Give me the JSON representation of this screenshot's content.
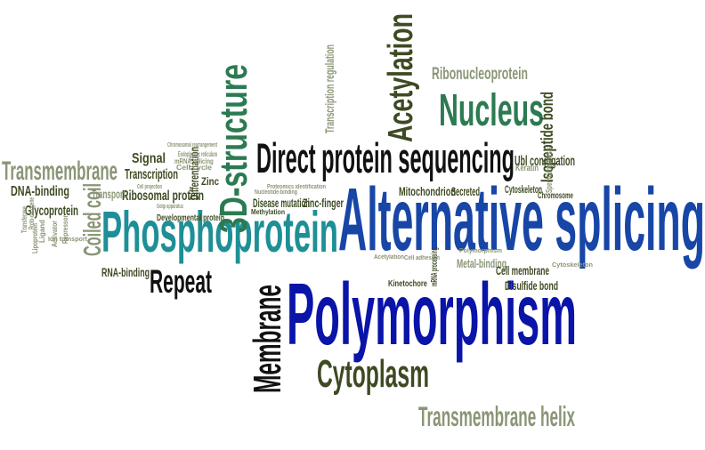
{
  "colors": {
    "blue": "#1746a6",
    "navy": "#0a14a8",
    "teal": "#1e8f96",
    "green": "#2c7a52",
    "olive": "#3d4a22",
    "sage": "#8a9576",
    "black": "#111111"
  },
  "words": [
    {
      "text": "Alternative splicing",
      "color": "blue"
    },
    {
      "text": "Polymorphism",
      "color": "navy"
    },
    {
      "text": "Phosphoprotein",
      "color": "teal"
    },
    {
      "text": "Nucleus",
      "color": "green"
    },
    {
      "text": "Acetylation",
      "color": "olive"
    },
    {
      "text": "3D-structure",
      "color": "green"
    },
    {
      "text": "Direct protein sequencing",
      "color": "black"
    },
    {
      "text": "Membrane",
      "color": "black"
    },
    {
      "text": "Cytoplasm",
      "color": "olive"
    },
    {
      "text": "Repeat",
      "color": "black"
    },
    {
      "text": "Transmembrane helix",
      "color": "sage"
    },
    {
      "text": "Transmembrane",
      "color": "sage"
    },
    {
      "text": "Ribonucleoprotein",
      "color": "sage"
    },
    {
      "text": "Transcription regulation",
      "color": "sage"
    },
    {
      "text": "Isopeptide bond",
      "color": "olive"
    },
    {
      "text": "Ubl conjugation",
      "color": "olive"
    },
    {
      "text": "Signal",
      "color": "olive"
    },
    {
      "text": "Transcription",
      "color": "olive"
    },
    {
      "text": "Ribosomal protein",
      "color": "olive"
    },
    {
      "text": "DNA-binding",
      "color": "olive"
    },
    {
      "text": "Glycoprotein",
      "color": "olive"
    },
    {
      "text": "Coiled coil",
      "color": "sage"
    },
    {
      "text": "Transport",
      "color": "sage"
    },
    {
      "text": "Zinc",
      "color": "olive"
    },
    {
      "text": "Differentiation",
      "color": "olive"
    },
    {
      "text": "Disease mutation",
      "color": "olive"
    },
    {
      "text": "Zinc-finger",
      "color": "olive"
    },
    {
      "text": "Methylation",
      "color": "olive"
    },
    {
      "text": "Developmental protein",
      "color": "olive"
    },
    {
      "text": "Mitochondrion",
      "color": "olive"
    },
    {
      "text": "Secreted",
      "color": "olive"
    },
    {
      "text": "Cytoskeleton",
      "color": "olive"
    },
    {
      "text": "Metal-binding",
      "color": "sage"
    },
    {
      "text": "Cell membrane",
      "color": "olive"
    },
    {
      "text": "Disulfide bond",
      "color": "olive"
    },
    {
      "text": "RNA-binding",
      "color": "olive"
    },
    {
      "text": "Keratin",
      "color": "sage"
    },
    {
      "text": "Chromosome",
      "color": "olive"
    },
    {
      "text": "Spermatogenesis",
      "color": "sage"
    },
    {
      "text": "Kinetochore",
      "color": "olive"
    },
    {
      "text": "mRNA processing",
      "color": "olive"
    },
    {
      "text": "Endoplasmic reticulum",
      "color": "sage"
    },
    {
      "text": "mRNA splicing",
      "color": "sage"
    },
    {
      "text": "Cell cycle",
      "color": "sage"
    },
    {
      "text": "Cell projection",
      "color": "sage"
    },
    {
      "text": "Golgi apparatus",
      "color": "sage"
    },
    {
      "text": "Chromosomal rearrangement",
      "color": "sage"
    },
    {
      "text": "Ligand",
      "color": "sage"
    },
    {
      "text": "Activator",
      "color": "sage"
    },
    {
      "text": "Repressor",
      "color": "sage"
    },
    {
      "text": "Ion transport",
      "color": "sage"
    },
    {
      "text": "Proto-oncogene",
      "color": "sage"
    },
    {
      "text": "Lipoprotein",
      "color": "sage"
    },
    {
      "text": "Transferase",
      "color": "sage"
    },
    {
      "text": "Cell adhesion",
      "color": "sage"
    },
    {
      "text": "Acetylation",
      "color": "sage"
    },
    {
      "text": "Nucleotide-binding",
      "color": "sage"
    },
    {
      "text": "Proteomics identification",
      "color": "sage"
    },
    {
      "text": "Cytoskeleton",
      "color": "sage"
    },
    {
      "text": "Polymorphism",
      "color": "sage"
    }
  ]
}
